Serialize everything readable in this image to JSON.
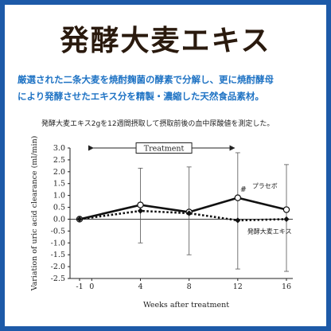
{
  "page": {
    "title": "発酵大麦エキス",
    "description_lines": [
      "厳選された二条大麦を焼酎麹菌の酵素で分解し、更に焼酎酵母",
      "により発酵させたエキス分を精製・濃縮した天然食品素材。"
    ],
    "chart_note": "発酵大麦エキス2gを12週間摂取して摂取前後の血中尿酸値を測定した。",
    "border_color": "#1d5aa8",
    "accent_color": "#1f73c4"
  },
  "chart_data": {
    "type": "line",
    "xlabel": "Weeks after treatment",
    "ylabel": "Variation of uric acid clearance (ml/min)",
    "x_ticks": [
      -1,
      0,
      4,
      8,
      12,
      16
    ],
    "x_tick_labels": [
      "-1",
      "0",
      "4",
      "8",
      "12",
      "16"
    ],
    "xlim": [
      -2,
      17
    ],
    "ylim": [
      -2.5,
      3.0
    ],
    "y_ticks": [
      -2.5,
      -2.0,
      -1.5,
      -1.0,
      -0.5,
      0.0,
      0.5,
      1.0,
      1.5,
      2.0,
      2.5,
      3.0
    ],
    "y_tick_labels": [
      "-2.5",
      "-2.0",
      "-1.5",
      "-1.0",
      "-0.5",
      "0.0",
      "0.5",
      "1.0",
      "1.5",
      "2.0",
      "2.5",
      "3.0"
    ],
    "treatment_label": "Treatment",
    "treatment_range": [
      0,
      12
    ],
    "series": [
      {
        "name": "プラセボ",
        "style": "solid",
        "marker": "circle-open",
        "x": [
          -1,
          4,
          8,
          12,
          16
        ],
        "values": [
          0.0,
          0.6,
          0.3,
          0.9,
          0.4
        ],
        "error_upper": [
          0.0,
          2.15,
          2.2,
          2.8,
          2.3
        ],
        "error_lower": [
          0.0,
          -1.0,
          -1.5,
          -2.1,
          -2.2
        ]
      },
      {
        "name": "発酵大麦エキス",
        "style": "dotted",
        "marker": "diamond-filled",
        "x": [
          -1,
          4,
          8,
          12,
          16
        ],
        "values": [
          0.0,
          0.35,
          0.25,
          -0.05,
          0.0
        ]
      }
    ],
    "annotations": [
      {
        "text": "#",
        "x": 12,
        "y": 1.25
      }
    ]
  }
}
